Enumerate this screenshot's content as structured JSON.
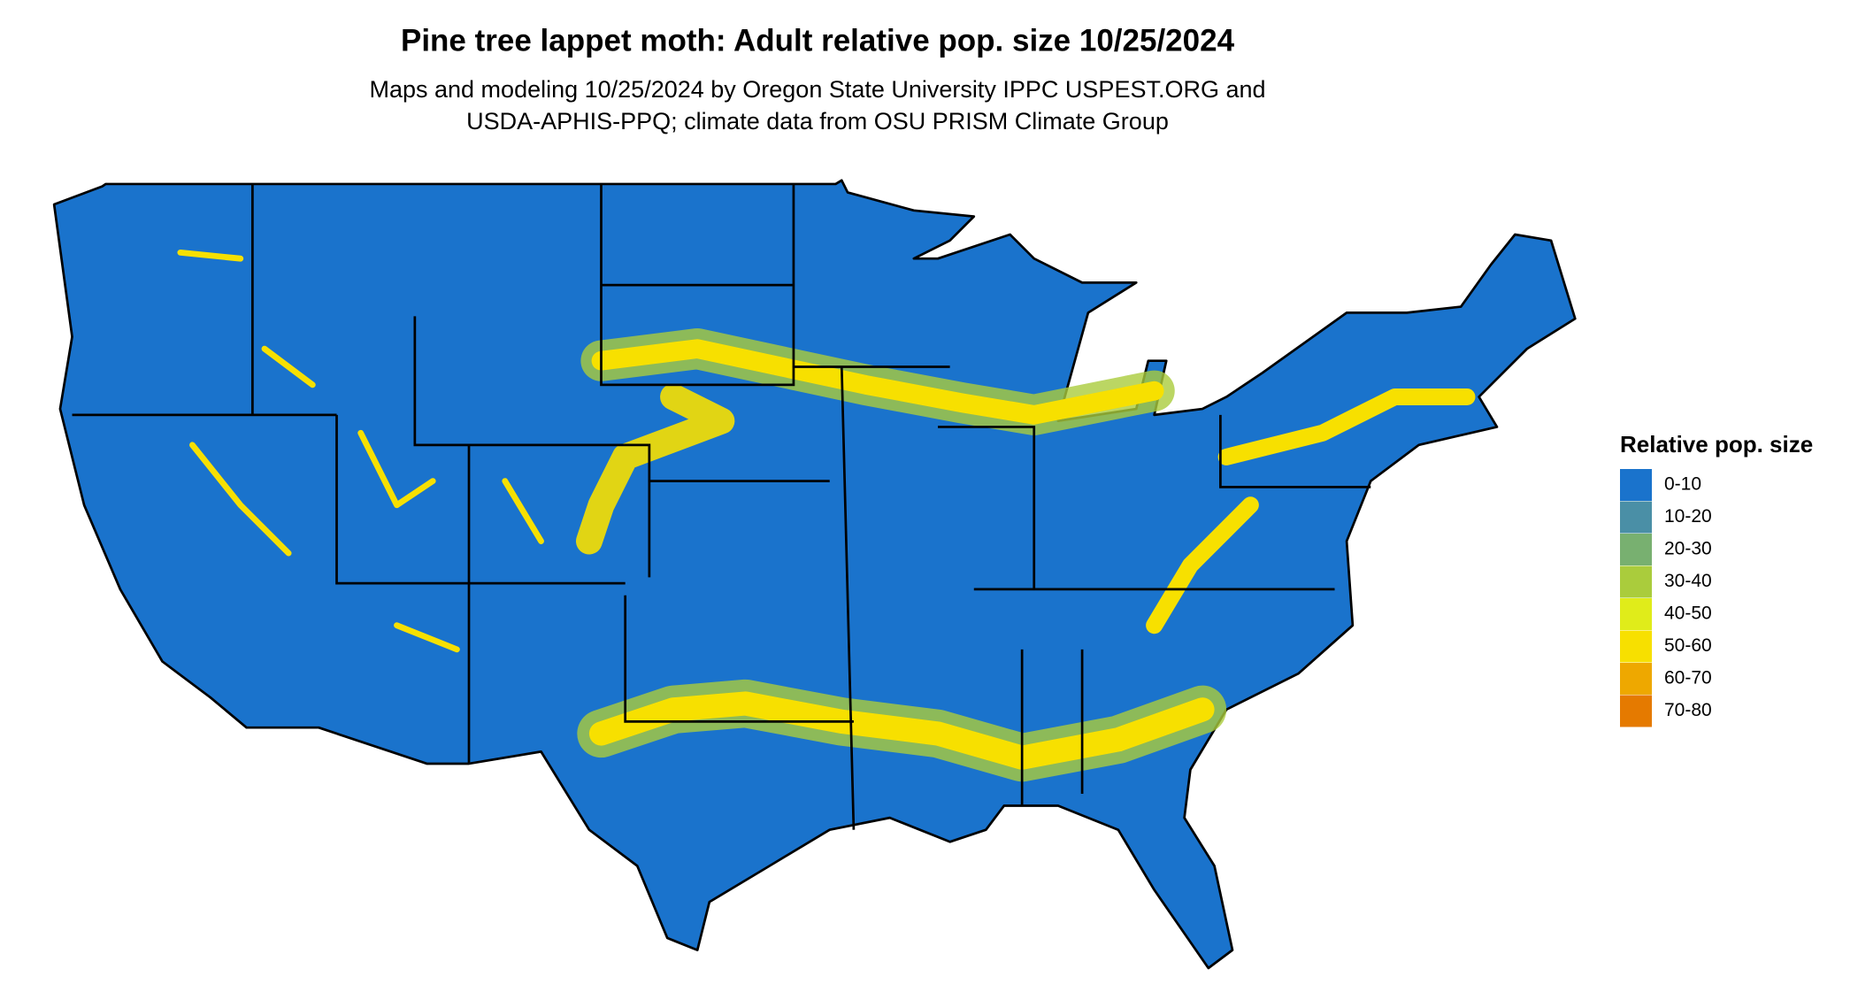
{
  "title": "Pine tree lappet moth: Adult relative pop. size 10/25/2024",
  "subtitle": [
    "Maps and modeling 10/25/2024 by Oregon State University IPPC USPEST.ORG and",
    "USDA-APHIS-PPQ; climate data from OSU PRISM Climate Group"
  ],
  "legend": {
    "title": "Relative pop. size",
    "items": [
      {
        "label": "0-10",
        "color": "#1a73cc"
      },
      {
        "label": "10-20",
        "color": "#4a8fa6"
      },
      {
        "label": "20-30",
        "color": "#78b070"
      },
      {
        "label": "30-40",
        "color": "#aacc3c"
      },
      {
        "label": "40-50",
        "color": "#e0ec1a"
      },
      {
        "label": "50-60",
        "color": "#f7e000"
      },
      {
        "label": "60-70",
        "color": "#eea800"
      },
      {
        "label": "70-80",
        "color": "#e57a00"
      }
    ]
  }
}
